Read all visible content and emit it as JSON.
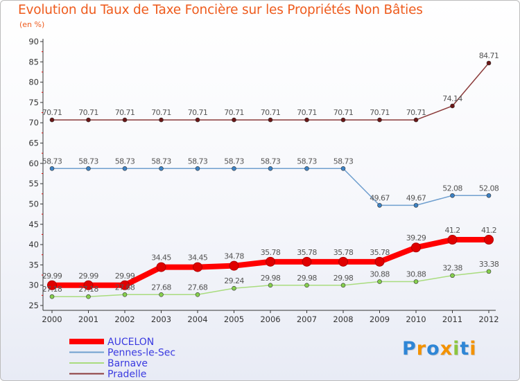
{
  "title": "Evolution du Taux de Taxe Foncière sur les Propriétés Non Bâties",
  "subtitle": "(en %)",
  "logo": {
    "text": "Proxiti",
    "letters": [
      {
        "char": "P",
        "color": "#2e86d6"
      },
      {
        "char": "r",
        "color": "#f39200"
      },
      {
        "char": "o",
        "color": "#2e86d6"
      },
      {
        "char": "x",
        "color": "#f39200"
      },
      {
        "char": "i",
        "color": "#8cc63f"
      },
      {
        "char": "t",
        "color": "#2e86d6"
      },
      {
        "char": "i",
        "color": "#f39200"
      }
    ]
  },
  "chart_data": {
    "type": "line",
    "title": "Evolution du Taux de Taxe Foncière sur les Propriétés Non Bâties",
    "ylabel": "(en %)",
    "xlabel": "",
    "ylim": [
      25,
      90
    ],
    "yticks": [
      25,
      30,
      35,
      40,
      45,
      50,
      55,
      60,
      65,
      70,
      75,
      80,
      85,
      90
    ],
    "categories": [
      "2000",
      "2001",
      "2002",
      "2003",
      "2004",
      "2005",
      "2006",
      "2007",
      "2008",
      "2009",
      "2010",
      "2011",
      "2012"
    ],
    "grid": false,
    "legend_position": "bottom-left",
    "series": [
      {
        "name": "Pradelle",
        "color": "#8b3a3a",
        "marker": "#6b1616",
        "thick": false,
        "values": [
          70.71,
          70.71,
          70.71,
          70.71,
          70.71,
          70.71,
          70.71,
          70.71,
          70.71,
          70.71,
          70.71,
          74.14,
          84.71
        ],
        "labels": [
          "70.71",
          "70.71",
          "70.71",
          "70.71",
          "70.71",
          "70.71",
          "70.71",
          "70.71",
          "70.71",
          "70.71",
          "70.71",
          "74.14",
          "84.71"
        ]
      },
      {
        "name": "Pennes-le-Sec",
        "color": "#6f9fcf",
        "marker": "#3d82c4",
        "thick": false,
        "values": [
          58.73,
          58.73,
          58.73,
          58.73,
          58.73,
          58.73,
          58.73,
          58.73,
          58.73,
          49.67,
          49.67,
          52.08,
          52.08
        ],
        "labels": [
          "58.73",
          "58.73",
          "58.73",
          "58.73",
          "58.73",
          "58.73",
          "58.73",
          "58.73",
          "58.73",
          "49.67",
          "49.67",
          "52.08",
          "52.08"
        ]
      },
      {
        "name": "Barnave",
        "color": "#a9dc7e",
        "marker": "#86cf4e",
        "thick": false,
        "values": [
          27.18,
          27.18,
          27.68,
          27.68,
          27.68,
          29.24,
          29.98,
          29.98,
          29.98,
          30.88,
          30.88,
          32.38,
          33.38
        ],
        "labels": [
          "27.18",
          "27.18",
          "27.68",
          "27.68",
          "27.68",
          "29.24",
          "29.98",
          "29.98",
          "29.98",
          "30.88",
          "30.88",
          "32.38",
          "33.38"
        ]
      },
      {
        "name": "AUCELON",
        "color": "#ff0000",
        "marker": "#e00000",
        "thick": true,
        "values": [
          29.99,
          29.99,
          29.99,
          34.45,
          34.45,
          34.78,
          35.78,
          35.78,
          35.78,
          35.78,
          39.29,
          41.2,
          41.2
        ],
        "labels": [
          "29.99",
          "29.99",
          "29.99",
          "34.45",
          "34.45",
          "34.78",
          "35.78",
          "35.78",
          "35.78",
          "35.78",
          "39.29",
          "41.2",
          "41.2"
        ]
      }
    ],
    "legend": [
      {
        "name": "AUCELON",
        "color": "#ff0000",
        "thick": true
      },
      {
        "name": "Pennes-le-Sec",
        "color": "#6f9fcf",
        "thick": false
      },
      {
        "name": "Barnave",
        "color": "#a9dc7e",
        "thick": false
      },
      {
        "name": "Pradelle",
        "color": "#8b3a3a",
        "thick": false
      }
    ]
  }
}
